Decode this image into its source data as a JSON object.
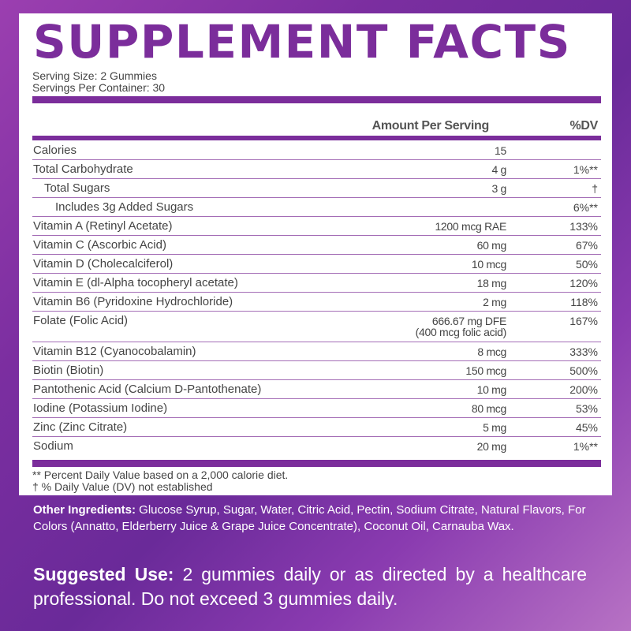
{
  "title": "SUPPLEMENT FACTS",
  "serving_size": "Serving Size: 2 Gummies",
  "servings_per_container": "Servings Per Container: 30",
  "headers": {
    "amount": "Amount Per Serving",
    "dv": "%DV"
  },
  "rows": [
    {
      "name": "Calories",
      "amount": "15",
      "dv": ""
    },
    {
      "name": "Total Carbohydrate",
      "amount": "4 g",
      "dv": "1%**"
    },
    {
      "name": "Total Sugars",
      "amount": "3 g",
      "dv": "†"
    },
    {
      "name": "Includes 3g Added Sugars",
      "amount": "",
      "dv": "6%**"
    },
    {
      "name": "Vitamin A (Retinyl Acetate)",
      "amount": "1200 mcg RAE",
      "dv": "133%"
    },
    {
      "name": "Vitamin C (Ascorbic Acid)",
      "amount": "60 mg",
      "dv": "67%"
    },
    {
      "name": "Vitamin D (Cholecalciferol)",
      "amount": "10 mcg",
      "dv": "50%"
    },
    {
      "name": "Vitamin E (dl-Alpha tocopheryl acetate)",
      "amount": "18 mg",
      "dv": "120%"
    },
    {
      "name": "Vitamin B6 (Pyridoxine Hydrochloride)",
      "amount": "2 mg",
      "dv": "118%"
    },
    {
      "name": "Folate (Folic Acid)",
      "amount": "666.67 mg DFE",
      "amount_sub": "(400 mcg folic acid)",
      "dv": "167%"
    },
    {
      "name": "Vitamin B12 (Cyanocobalamin)",
      "amount": "8 mcg",
      "dv": "333%"
    },
    {
      "name": "Biotin (Biotin)",
      "amount": "150 mcg",
      "dv": "500%"
    },
    {
      "name": "Pantothenic Acid (Calcium D-Pantothenate)",
      "amount": "10 mg",
      "dv": "200%"
    },
    {
      "name": "Iodine (Potassium Iodine)",
      "amount": "80 mcg",
      "dv": "53%"
    },
    {
      "name": "Zinc (Zinc Citrate)",
      "amount": "5 mg",
      "dv": "45%"
    },
    {
      "name": "Sodium",
      "amount": "20 mg",
      "dv": "1%**"
    }
  ],
  "footnotes": {
    "dv_note": "**  Percent Daily Value based on a 2,000 calorie diet.",
    "dagger_note": "† % Daily Value (DV) not established"
  },
  "other_ingredients": {
    "label": "Other Ingredients:",
    "text": " Glucose Syrup, Sugar, Water, Citric Acid, Pectin, Sodium Citrate, Natural Flavors, For Colors (Annatto, Elderberry Juice & Grape Juice Concentrate), Coconut Oil, Carnauba Wax."
  },
  "suggested_use": {
    "label": "Suggested Use:",
    "text": " 2 gummies daily or as directed by a healthcare professional. Do not exceed 3 gummies daily."
  }
}
